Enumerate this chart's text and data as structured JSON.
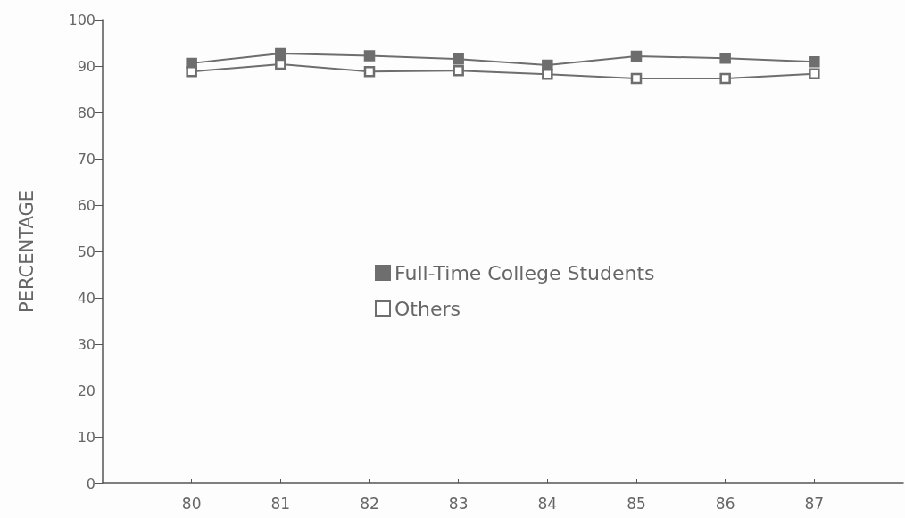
{
  "chart_data": {
    "type": "line",
    "ylabel": "PERCENTAGE",
    "x": [
      80,
      81,
      82,
      83,
      84,
      85,
      86,
      87
    ],
    "series": [
      {
        "name": "Full-Time College Students",
        "color": "#6e6e6e",
        "values": [
          90.6,
          92.7,
          92.2,
          91.5,
          90.2,
          92.1,
          91.7,
          90.9
        ]
      },
      {
        "name": "Others",
        "color": "#6e6e6e",
        "values": [
          88.8,
          90.4,
          88.8,
          89.0,
          88.2,
          87.3,
          87.3,
          88.3
        ]
      }
    ],
    "xlim": [
      79,
      88
    ],
    "xticks": [
      80,
      81,
      82,
      83,
      84,
      85,
      86,
      87
    ],
    "ylim": [
      0,
      100
    ],
    "yticks": [
      0,
      10,
      20,
      30,
      40,
      50,
      60,
      70,
      80,
      90,
      100
    ],
    "grid": false,
    "legend": "center",
    "marker": "square",
    "line_style": "solid"
  }
}
